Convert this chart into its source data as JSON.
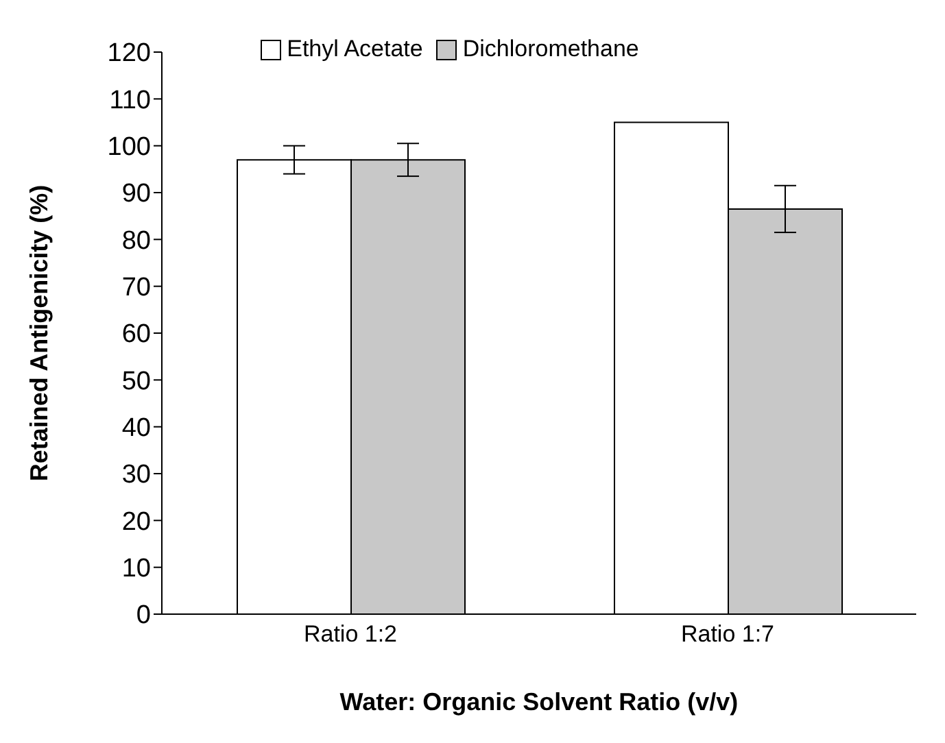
{
  "chart_data": {
    "type": "bar",
    "xlabel": "Water: Organic Solvent Ratio (v/v)",
    "ylabel": "Retained Antigenicity (%)",
    "categories": [
      "Ratio 1:2",
      "Ratio 1:7"
    ],
    "series": [
      {
        "name": "Ethyl Acetate",
        "color": "#ffffff",
        "values": [
          97,
          105
        ],
        "errors": [
          3,
          null
        ]
      },
      {
        "name": "Dichloromethane",
        "color": "#c8c8c8",
        "values": [
          97,
          86.5
        ],
        "errors": [
          3.5,
          5
        ]
      }
    ],
    "ylim": [
      0,
      120
    ],
    "yticks": [
      0,
      10,
      20,
      30,
      40,
      50,
      60,
      70,
      80,
      90,
      100,
      110,
      120
    ],
    "grid": false,
    "legend": "top"
  }
}
